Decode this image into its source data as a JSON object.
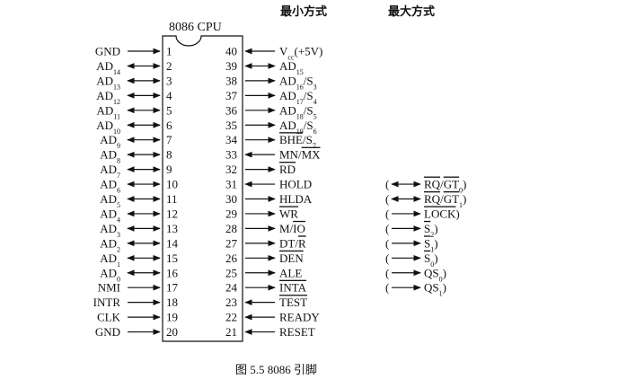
{
  "header": {
    "chip_title": "8086 CPU",
    "min_mode_label": "最小方式",
    "max_mode_label": "最大方式"
  },
  "caption": "图 5.5   8086 引脚",
  "pins_left": [
    {
      "num": "1",
      "name": "GND",
      "sub": "",
      "arrow": "right"
    },
    {
      "num": "2",
      "name": "AD",
      "sub": "14",
      "arrow": "both"
    },
    {
      "num": "3",
      "name": "AD",
      "sub": "13",
      "arrow": "both"
    },
    {
      "num": "4",
      "name": "AD",
      "sub": "12",
      "arrow": "both"
    },
    {
      "num": "5",
      "name": "AD",
      "sub": "11",
      "arrow": "both"
    },
    {
      "num": "6",
      "name": "AD",
      "sub": "10",
      "arrow": "both"
    },
    {
      "num": "7",
      "name": "AD",
      "sub": "9",
      "arrow": "both"
    },
    {
      "num": "8",
      "name": "AD",
      "sub": "8",
      "arrow": "both"
    },
    {
      "num": "9",
      "name": "AD",
      "sub": "7",
      "arrow": "both"
    },
    {
      "num": "10",
      "name": "AD",
      "sub": "6",
      "arrow": "both"
    },
    {
      "num": "11",
      "name": "AD",
      "sub": "5",
      "arrow": "both"
    },
    {
      "num": "12",
      "name": "AD",
      "sub": "4",
      "arrow": "both"
    },
    {
      "num": "13",
      "name": "AD",
      "sub": "3",
      "arrow": "both"
    },
    {
      "num": "14",
      "name": "AD",
      "sub": "2",
      "arrow": "both"
    },
    {
      "num": "15",
      "name": "AD",
      "sub": "1",
      "arrow": "both"
    },
    {
      "num": "16",
      "name": "AD",
      "sub": "0",
      "arrow": "both"
    },
    {
      "num": "17",
      "name": "NMI",
      "sub": "",
      "arrow": "right"
    },
    {
      "num": "18",
      "name": "INTR",
      "sub": "",
      "arrow": "right"
    },
    {
      "num": "19",
      "name": "CLK",
      "sub": "",
      "arrow": "right"
    },
    {
      "num": "20",
      "name": "GND",
      "sub": "",
      "arrow": "right"
    }
  ],
  "pins_right": [
    {
      "num": "40",
      "arrow": "left",
      "parts": [
        {
          "t": "V"
        },
        {
          "t": "cc",
          "sub": true
        },
        {
          "t": "(+5V)"
        }
      ]
    },
    {
      "num": "39",
      "arrow": "both",
      "parts": [
        {
          "t": "AD"
        },
        {
          "t": "15",
          "sub": true
        }
      ]
    },
    {
      "num": "38",
      "arrow": "right",
      "parts": [
        {
          "t": "AD"
        },
        {
          "t": "16",
          "sub": true
        },
        {
          "t": "/S"
        },
        {
          "t": "3",
          "sub": true
        }
      ]
    },
    {
      "num": "37",
      "arrow": "right",
      "parts": [
        {
          "t": "AD"
        },
        {
          "t": "17",
          "sub": true
        },
        {
          "t": "/S"
        },
        {
          "t": "4",
          "sub": true
        }
      ]
    },
    {
      "num": "36",
      "arrow": "right",
      "parts": [
        {
          "t": "AD"
        },
        {
          "t": "18",
          "sub": true
        },
        {
          "t": "/S"
        },
        {
          "t": "5",
          "sub": true
        }
      ]
    },
    {
      "num": "35",
      "arrow": "right",
      "parts": [
        {
          "t": "AD"
        },
        {
          "t": "19",
          "sub": true
        },
        {
          "t": "/S"
        },
        {
          "t": "6",
          "sub": true
        }
      ]
    },
    {
      "num": "34",
      "arrow": "right",
      "parts": [
        {
          "t": "BHE",
          "over": true
        },
        {
          "t": "/S"
        },
        {
          "t": "7",
          "sub": true
        }
      ]
    },
    {
      "num": "33",
      "arrow": "left",
      "parts": [
        {
          "t": "MN/"
        },
        {
          "t": "MX",
          "over": true
        }
      ]
    },
    {
      "num": "32",
      "arrow": "right",
      "parts": [
        {
          "t": "RD",
          "over": true
        }
      ]
    },
    {
      "num": "31",
      "arrow": "left",
      "parts": [
        {
          "t": "HOLD"
        }
      ]
    },
    {
      "num": "30",
      "arrow": "right",
      "parts": [
        {
          "t": "HLDA"
        }
      ]
    },
    {
      "num": "29",
      "arrow": "right",
      "parts": [
        {
          "t": "WR",
          "over": true
        }
      ]
    },
    {
      "num": "28",
      "arrow": "right",
      "parts": [
        {
          "t": "M/"
        },
        {
          "t": "IO",
          "over": true
        }
      ]
    },
    {
      "num": "27",
      "arrow": "right",
      "parts": [
        {
          "t": "DT/"
        },
        {
          "t": "R",
          "over": true
        }
      ]
    },
    {
      "num": "26",
      "arrow": "right",
      "parts": [
        {
          "t": "DEN",
          "over": true
        }
      ]
    },
    {
      "num": "25",
      "arrow": "right",
      "parts": [
        {
          "t": "ALE"
        }
      ]
    },
    {
      "num": "24",
      "arrow": "right",
      "parts": [
        {
          "t": "INTA",
          "over": true
        }
      ]
    },
    {
      "num": "23",
      "arrow": "left",
      "parts": [
        {
          "t": "TEST",
          "over": true
        }
      ]
    },
    {
      "num": "22",
      "arrow": "left",
      "parts": [
        {
          "t": "READY"
        }
      ]
    },
    {
      "num": "21",
      "arrow": "left",
      "parts": [
        {
          "t": "RESET"
        }
      ]
    }
  ],
  "max_mode": [
    {
      "row": 9,
      "arrow": "both",
      "parts": [
        {
          "t": "("
        },
        {
          "t": "RQ",
          "over": true
        },
        {
          "t": "/"
        },
        {
          "t": "GT",
          "over": true
        },
        {
          "t": "0",
          "sub": true
        },
        {
          "t": ")"
        }
      ]
    },
    {
      "row": 10,
      "arrow": "both",
      "parts": [
        {
          "t": "("
        },
        {
          "t": "RQ",
          "over": true
        },
        {
          "t": "/"
        },
        {
          "t": "GT",
          "over": true
        },
        {
          "t": "1",
          "sub": true
        },
        {
          "t": ")"
        }
      ]
    },
    {
      "row": 11,
      "arrow": "right",
      "parts": [
        {
          "t": "("
        },
        {
          "t": "LOCK",
          "over": true
        },
        {
          "t": ")"
        }
      ]
    },
    {
      "row": 12,
      "arrow": "right",
      "parts": [
        {
          "t": "("
        },
        {
          "t": "S",
          "over": true
        },
        {
          "t": "2",
          "sub": true
        },
        {
          "t": ")"
        }
      ]
    },
    {
      "row": 13,
      "arrow": "right",
      "parts": [
        {
          "t": "("
        },
        {
          "t": "S",
          "over": true
        },
        {
          "t": "1",
          "sub": true
        },
        {
          "t": ")"
        }
      ]
    },
    {
      "row": 14,
      "arrow": "right",
      "parts": [
        {
          "t": "("
        },
        {
          "t": "S",
          "over": true
        },
        {
          "t": "0",
          "sub": true
        },
        {
          "t": ")"
        }
      ]
    },
    {
      "row": 15,
      "arrow": "right",
      "parts": [
        {
          "t": "("
        },
        {
          "t": "QS"
        },
        {
          "t": "0",
          "sub": true
        },
        {
          "t": ")"
        }
      ]
    },
    {
      "row": 16,
      "arrow": "right",
      "parts": [
        {
          "t": "("
        },
        {
          "t": "QS"
        },
        {
          "t": "1",
          "sub": true
        },
        {
          "t": ")"
        }
      ]
    }
  ]
}
